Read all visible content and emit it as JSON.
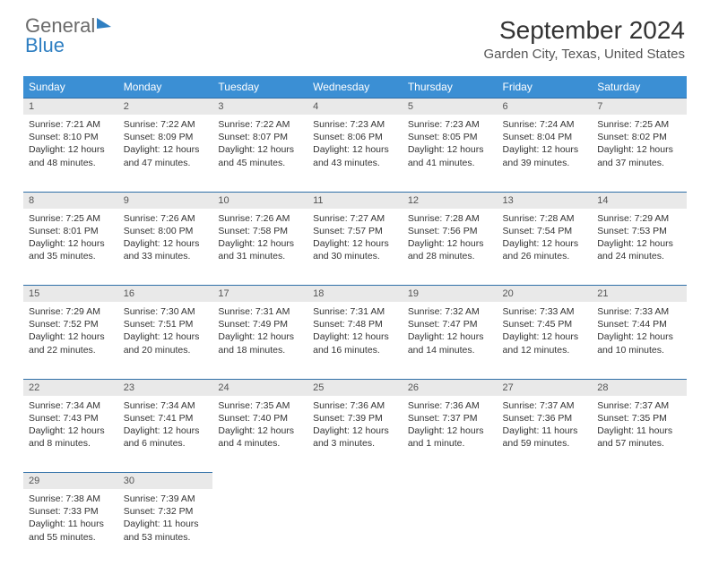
{
  "brand": {
    "part1": "General",
    "part2": "Blue"
  },
  "title": "September 2024",
  "location": "Garden City, Texas, United States",
  "colors": {
    "header_bg": "#3b8fd4",
    "header_text": "#ffffff",
    "daynum_bg": "#e9e9e9",
    "border": "#2f6fa8",
    "body_text": "#333333"
  },
  "weekdays": [
    "Sunday",
    "Monday",
    "Tuesday",
    "Wednesday",
    "Thursday",
    "Friday",
    "Saturday"
  ],
  "weeks": [
    [
      {
        "n": "1",
        "sr": "Sunrise: 7:21 AM",
        "ss": "Sunset: 8:10 PM",
        "d1": "Daylight: 12 hours",
        "d2": "and 48 minutes."
      },
      {
        "n": "2",
        "sr": "Sunrise: 7:22 AM",
        "ss": "Sunset: 8:09 PM",
        "d1": "Daylight: 12 hours",
        "d2": "and 47 minutes."
      },
      {
        "n": "3",
        "sr": "Sunrise: 7:22 AM",
        "ss": "Sunset: 8:07 PM",
        "d1": "Daylight: 12 hours",
        "d2": "and 45 minutes."
      },
      {
        "n": "4",
        "sr": "Sunrise: 7:23 AM",
        "ss": "Sunset: 8:06 PM",
        "d1": "Daylight: 12 hours",
        "d2": "and 43 minutes."
      },
      {
        "n": "5",
        "sr": "Sunrise: 7:23 AM",
        "ss": "Sunset: 8:05 PM",
        "d1": "Daylight: 12 hours",
        "d2": "and 41 minutes."
      },
      {
        "n": "6",
        "sr": "Sunrise: 7:24 AM",
        "ss": "Sunset: 8:04 PM",
        "d1": "Daylight: 12 hours",
        "d2": "and 39 minutes."
      },
      {
        "n": "7",
        "sr": "Sunrise: 7:25 AM",
        "ss": "Sunset: 8:02 PM",
        "d1": "Daylight: 12 hours",
        "d2": "and 37 minutes."
      }
    ],
    [
      {
        "n": "8",
        "sr": "Sunrise: 7:25 AM",
        "ss": "Sunset: 8:01 PM",
        "d1": "Daylight: 12 hours",
        "d2": "and 35 minutes."
      },
      {
        "n": "9",
        "sr": "Sunrise: 7:26 AM",
        "ss": "Sunset: 8:00 PM",
        "d1": "Daylight: 12 hours",
        "d2": "and 33 minutes."
      },
      {
        "n": "10",
        "sr": "Sunrise: 7:26 AM",
        "ss": "Sunset: 7:58 PM",
        "d1": "Daylight: 12 hours",
        "d2": "and 31 minutes."
      },
      {
        "n": "11",
        "sr": "Sunrise: 7:27 AM",
        "ss": "Sunset: 7:57 PM",
        "d1": "Daylight: 12 hours",
        "d2": "and 30 minutes."
      },
      {
        "n": "12",
        "sr": "Sunrise: 7:28 AM",
        "ss": "Sunset: 7:56 PM",
        "d1": "Daylight: 12 hours",
        "d2": "and 28 minutes."
      },
      {
        "n": "13",
        "sr": "Sunrise: 7:28 AM",
        "ss": "Sunset: 7:54 PM",
        "d1": "Daylight: 12 hours",
        "d2": "and 26 minutes."
      },
      {
        "n": "14",
        "sr": "Sunrise: 7:29 AM",
        "ss": "Sunset: 7:53 PM",
        "d1": "Daylight: 12 hours",
        "d2": "and 24 minutes."
      }
    ],
    [
      {
        "n": "15",
        "sr": "Sunrise: 7:29 AM",
        "ss": "Sunset: 7:52 PM",
        "d1": "Daylight: 12 hours",
        "d2": "and 22 minutes."
      },
      {
        "n": "16",
        "sr": "Sunrise: 7:30 AM",
        "ss": "Sunset: 7:51 PM",
        "d1": "Daylight: 12 hours",
        "d2": "and 20 minutes."
      },
      {
        "n": "17",
        "sr": "Sunrise: 7:31 AM",
        "ss": "Sunset: 7:49 PM",
        "d1": "Daylight: 12 hours",
        "d2": "and 18 minutes."
      },
      {
        "n": "18",
        "sr": "Sunrise: 7:31 AM",
        "ss": "Sunset: 7:48 PM",
        "d1": "Daylight: 12 hours",
        "d2": "and 16 minutes."
      },
      {
        "n": "19",
        "sr": "Sunrise: 7:32 AM",
        "ss": "Sunset: 7:47 PM",
        "d1": "Daylight: 12 hours",
        "d2": "and 14 minutes."
      },
      {
        "n": "20",
        "sr": "Sunrise: 7:33 AM",
        "ss": "Sunset: 7:45 PM",
        "d1": "Daylight: 12 hours",
        "d2": "and 12 minutes."
      },
      {
        "n": "21",
        "sr": "Sunrise: 7:33 AM",
        "ss": "Sunset: 7:44 PM",
        "d1": "Daylight: 12 hours",
        "d2": "and 10 minutes."
      }
    ],
    [
      {
        "n": "22",
        "sr": "Sunrise: 7:34 AM",
        "ss": "Sunset: 7:43 PM",
        "d1": "Daylight: 12 hours",
        "d2": "and 8 minutes."
      },
      {
        "n": "23",
        "sr": "Sunrise: 7:34 AM",
        "ss": "Sunset: 7:41 PM",
        "d1": "Daylight: 12 hours",
        "d2": "and 6 minutes."
      },
      {
        "n": "24",
        "sr": "Sunrise: 7:35 AM",
        "ss": "Sunset: 7:40 PM",
        "d1": "Daylight: 12 hours",
        "d2": "and 4 minutes."
      },
      {
        "n": "25",
        "sr": "Sunrise: 7:36 AM",
        "ss": "Sunset: 7:39 PM",
        "d1": "Daylight: 12 hours",
        "d2": "and 3 minutes."
      },
      {
        "n": "26",
        "sr": "Sunrise: 7:36 AM",
        "ss": "Sunset: 7:37 PM",
        "d1": "Daylight: 12 hours",
        "d2": "and 1 minute."
      },
      {
        "n": "27",
        "sr": "Sunrise: 7:37 AM",
        "ss": "Sunset: 7:36 PM",
        "d1": "Daylight: 11 hours",
        "d2": "and 59 minutes."
      },
      {
        "n": "28",
        "sr": "Sunrise: 7:37 AM",
        "ss": "Sunset: 7:35 PM",
        "d1": "Daylight: 11 hours",
        "d2": "and 57 minutes."
      }
    ],
    [
      {
        "n": "29",
        "sr": "Sunrise: 7:38 AM",
        "ss": "Sunset: 7:33 PM",
        "d1": "Daylight: 11 hours",
        "d2": "and 55 minutes."
      },
      {
        "n": "30",
        "sr": "Sunrise: 7:39 AM",
        "ss": "Sunset: 7:32 PM",
        "d1": "Daylight: 11 hours",
        "d2": "and 53 minutes."
      },
      null,
      null,
      null,
      null,
      null
    ]
  ]
}
